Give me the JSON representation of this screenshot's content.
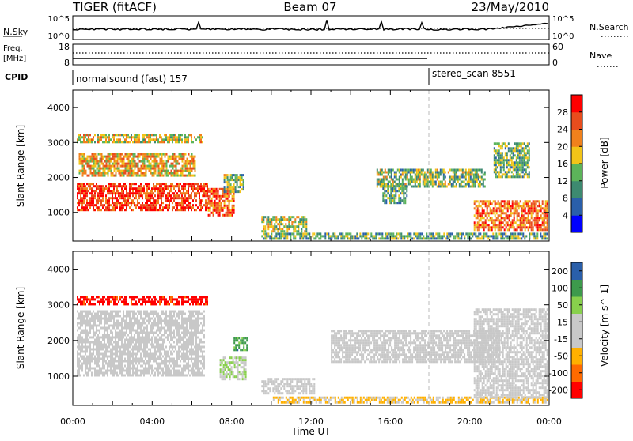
{
  "header": {
    "radar": "TIGER (fitACF)",
    "beam": "Beam 07",
    "date": "23/May/2010"
  },
  "nsky_panel": {
    "left_label": "N.Sky",
    "left_ticks": [
      "10^5",
      "10^0"
    ],
    "right_ticks": [
      "10^5",
      "10^0"
    ],
    "right_label": "N.Search"
  },
  "freq_panel": {
    "left_label_1": "Freq.",
    "left_label_2": "[MHz]",
    "left_ticks": [
      "18",
      "8"
    ],
    "right_ticks": [
      "60",
      "0"
    ],
    "right_label": "Nave"
  },
  "cpid_panel": {
    "label": "CPID",
    "programs": [
      {
        "name": "normalsound (fast) 157",
        "start_hour": 0.0
      },
      {
        "name": "stereo_scan 8551",
        "start_hour": 18.0
      }
    ]
  },
  "colors": {
    "power_scale": [
      "#0000ff",
      "#2a5faa",
      "#3d8a70",
      "#5cb45a",
      "#f2c418",
      "#f0811c",
      "#e84d1d",
      "#ff0000"
    ],
    "velocity_scale": [
      "#ff0000",
      "#ff6a00",
      "#ffb000",
      "#c8c8c8",
      "#c8c8c8",
      "#88d04c",
      "#3d9a4c",
      "#2a5faa"
    ]
  },
  "chart_data": [
    {
      "type": "heatmap",
      "panel": "power",
      "xlabel": "",
      "ylabel": "Slant Range [km]",
      "x_range_hours": [
        0,
        24
      ],
      "ylim": [
        180,
        4500
      ],
      "yticks": [
        "1000",
        "2000",
        "3000",
        "4000"
      ],
      "colorbar": {
        "label": "Power [dB]",
        "ticks": [
          "4",
          "8",
          "12",
          "16",
          "20",
          "24",
          "28"
        ],
        "range": [
          0,
          32
        ]
      },
      "regions": [
        {
          "t0": 0.2,
          "t1": 6.8,
          "r0": 1100,
          "r1": 1850,
          "value": 27
        },
        {
          "t0": 6.8,
          "t1": 8.1,
          "r0": 900,
          "r1": 1700,
          "value": 25
        },
        {
          "t0": 0.3,
          "t1": 6.2,
          "r0": 2050,
          "r1": 2700,
          "value": 20
        },
        {
          "t0": 0.2,
          "t1": 6.5,
          "r0": 3000,
          "r1": 3250,
          "value": 18
        },
        {
          "t0": 7.6,
          "t1": 8.6,
          "r0": 1600,
          "r1": 2100,
          "value": 14
        },
        {
          "t0": 9.5,
          "t1": 11.8,
          "r0": 450,
          "r1": 900,
          "value": 16
        },
        {
          "t0": 9.5,
          "t1": 23.9,
          "r0": 240,
          "r1": 420,
          "value": 12
        },
        {
          "t0": 15.3,
          "t1": 20.8,
          "r0": 1750,
          "r1": 2250,
          "value": 14
        },
        {
          "t0": 15.6,
          "t1": 16.8,
          "r0": 1300,
          "r1": 1850,
          "value": 12
        },
        {
          "t0": 20.2,
          "t1": 23.9,
          "r0": 500,
          "r1": 1350,
          "value": 24
        },
        {
          "t0": 21.2,
          "t1": 23.0,
          "r0": 2000,
          "r1": 3000,
          "value": 13
        }
      ]
    },
    {
      "type": "heatmap",
      "panel": "velocity",
      "xlabel": "Time UT",
      "ylabel": "Slant Range [km]",
      "x_range_hours": [
        0,
        24
      ],
      "xticks": [
        "00:00",
        "04:00",
        "08:00",
        "12:00",
        "16:00",
        "20:00",
        "00:00"
      ],
      "ylim": [
        180,
        4500
      ],
      "yticks": [
        "1000",
        "2000",
        "3000",
        "4000"
      ],
      "colorbar": {
        "label": "Velocity [m s^-1]",
        "ticks": [
          "200",
          "100",
          "50",
          "15",
          "-15",
          "-50",
          "-100",
          "-200"
        ],
        "range": [
          -250,
          250
        ]
      },
      "regions": [
        {
          "t0": 0.2,
          "t1": 6.8,
          "r0": 3000,
          "r1": 3250,
          "value": -220
        },
        {
          "t0": 0.2,
          "t1": 6.6,
          "r0": 1050,
          "r1": 2850,
          "value": 0
        },
        {
          "t0": 7.4,
          "t1": 8.7,
          "r0": 900,
          "r1": 1550,
          "value": 60
        },
        {
          "t0": 8.1,
          "t1": 8.8,
          "r0": 1750,
          "r1": 2100,
          "value": 150
        },
        {
          "t0": 9.5,
          "t1": 12.2,
          "r0": 550,
          "r1": 950,
          "value": 0
        },
        {
          "t0": 10.0,
          "t1": 23.9,
          "r0": 240,
          "r1": 430,
          "value": -70
        },
        {
          "t0": 13.0,
          "t1": 21.5,
          "r0": 1400,
          "r1": 2300,
          "value": 0
        },
        {
          "t0": 20.2,
          "t1": 23.9,
          "r0": 400,
          "r1": 2900,
          "value": 0
        }
      ]
    }
  ]
}
